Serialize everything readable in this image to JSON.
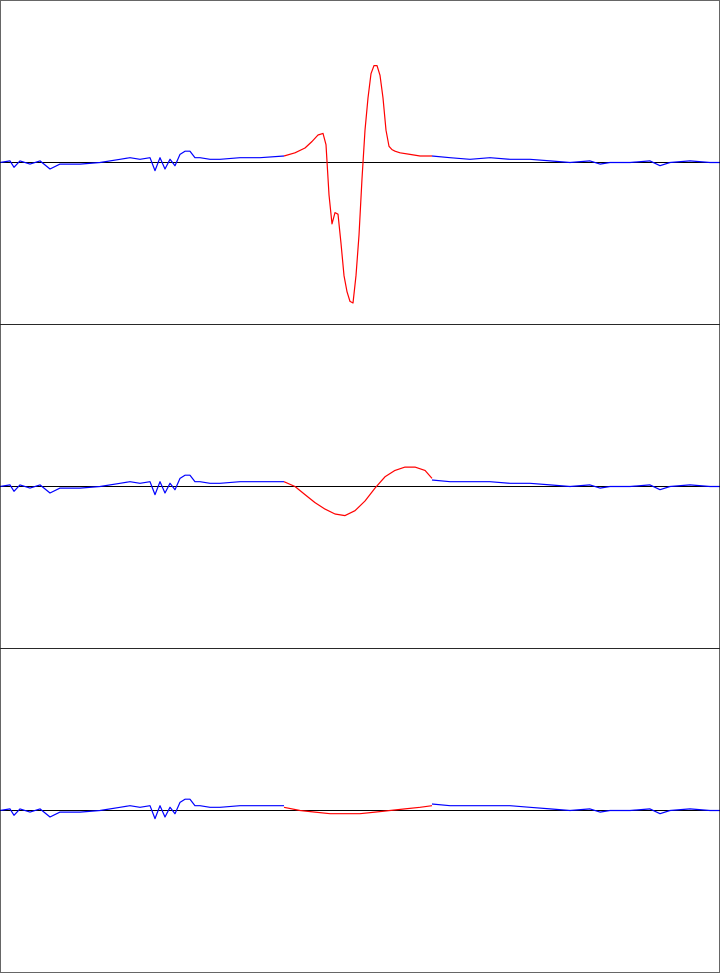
{
  "colors": {
    "background": "#ffffff",
    "frame": "#000000",
    "baseline": "#000000",
    "signal": "#0000ff",
    "highlight": "#ff0000"
  },
  "chart_data": [
    {
      "type": "line",
      "panel": "top",
      "ylim": [
        -1,
        1
      ],
      "baseline": 0,
      "series": [
        {
          "color": "#0000ff",
          "x": [
            0,
            10,
            14,
            20,
            30,
            40,
            50,
            60,
            80,
            100,
            120,
            130,
            140,
            150,
            155,
            160,
            165,
            170,
            175,
            180,
            185,
            190,
            195,
            200,
            210,
            220,
            240,
            260,
            284
          ],
          "values": [
            0.0,
            0.01,
            -0.03,
            0.01,
            -0.01,
            0.01,
            -0.04,
            -0.01,
            -0.01,
            0.0,
            0.02,
            0.03,
            0.02,
            0.03,
            -0.05,
            0.03,
            -0.04,
            0.02,
            -0.02,
            0.05,
            0.07,
            0.07,
            0.03,
            0.03,
            0.02,
            0.02,
            0.03,
            0.03,
            0.04
          ]
        },
        {
          "color": "#ff0000",
          "x": [
            284,
            295,
            305,
            312,
            318,
            323,
            326,
            329,
            332,
            335,
            338,
            341,
            344,
            347,
            350,
            353,
            356,
            359,
            362,
            365,
            368,
            371,
            374,
            377,
            380,
            383,
            386,
            389,
            392,
            395,
            400,
            410,
            420,
            432
          ],
          "values": [
            0.04,
            0.06,
            0.09,
            0.13,
            0.17,
            0.18,
            0.11,
            -0.2,
            -0.38,
            -0.31,
            -0.32,
            -0.5,
            -0.7,
            -0.8,
            -0.86,
            -0.87,
            -0.7,
            -0.45,
            -0.1,
            0.2,
            0.4,
            0.55,
            0.6,
            0.6,
            0.54,
            0.4,
            0.2,
            0.1,
            0.08,
            0.07,
            0.06,
            0.05,
            0.04,
            0.04
          ]
        },
        {
          "color": "#0000ff",
          "x": [
            432,
            450,
            470,
            490,
            510,
            530,
            550,
            570,
            590,
            600,
            610,
            630,
            650,
            660,
            670,
            690,
            710,
            720
          ],
          "values": [
            0.04,
            0.03,
            0.02,
            0.03,
            0.02,
            0.02,
            0.01,
            0.0,
            0.01,
            -0.01,
            0.0,
            0.0,
            0.01,
            -0.02,
            0.0,
            0.01,
            0.0,
            0.0
          ]
        }
      ]
    },
    {
      "type": "line",
      "panel": "middle",
      "ylim": [
        -1,
        1
      ],
      "baseline": 0,
      "series": [
        {
          "color": "#0000ff",
          "x": [
            0,
            10,
            14,
            20,
            30,
            40,
            50,
            60,
            80,
            100,
            120,
            130,
            140,
            150,
            155,
            160,
            165,
            170,
            175,
            180,
            185,
            190,
            195,
            200,
            210,
            220,
            240,
            260,
            284
          ],
          "values": [
            0.0,
            0.01,
            -0.03,
            0.01,
            -0.01,
            0.01,
            -0.04,
            -0.01,
            -0.01,
            0.0,
            0.02,
            0.03,
            0.02,
            0.03,
            -0.05,
            0.03,
            -0.04,
            0.02,
            -0.02,
            0.05,
            0.07,
            0.07,
            0.03,
            0.03,
            0.02,
            0.02,
            0.03,
            0.03,
            0.03
          ]
        },
        {
          "color": "#ff0000",
          "x": [
            284,
            295,
            305,
            315,
            325,
            335,
            345,
            355,
            365,
            375,
            385,
            395,
            405,
            415,
            425,
            432
          ],
          "values": [
            0.03,
            0.0,
            -0.05,
            -0.1,
            -0.14,
            -0.17,
            -0.18,
            -0.15,
            -0.09,
            -0.01,
            0.06,
            0.1,
            0.12,
            0.12,
            0.1,
            0.05
          ]
        },
        {
          "color": "#0000ff",
          "x": [
            432,
            450,
            470,
            490,
            510,
            530,
            550,
            570,
            590,
            600,
            610,
            630,
            650,
            660,
            670,
            690,
            710,
            720
          ],
          "values": [
            0.04,
            0.03,
            0.03,
            0.03,
            0.02,
            0.02,
            0.01,
            0.0,
            0.01,
            -0.01,
            0.0,
            0.0,
            0.01,
            -0.02,
            0.0,
            0.01,
            0.0,
            0.0
          ]
        }
      ]
    },
    {
      "type": "line",
      "panel": "bottom",
      "ylim": [
        -1,
        1
      ],
      "baseline": 0,
      "series": [
        {
          "color": "#0000ff",
          "x": [
            0,
            10,
            14,
            20,
            30,
            40,
            50,
            60,
            80,
            100,
            120,
            130,
            140,
            150,
            155,
            160,
            165,
            170,
            175,
            180,
            185,
            190,
            195,
            200,
            210,
            220,
            240,
            260,
            284
          ],
          "values": [
            0.0,
            0.01,
            -0.03,
            0.01,
            -0.01,
            0.01,
            -0.04,
            -0.01,
            -0.01,
            0.0,
            0.02,
            0.03,
            0.02,
            0.03,
            -0.05,
            0.03,
            -0.04,
            0.02,
            -0.02,
            0.05,
            0.07,
            0.07,
            0.03,
            0.03,
            0.02,
            0.02,
            0.03,
            0.03,
            0.03
          ]
        },
        {
          "color": "#ff0000",
          "x": [
            284,
            300,
            315,
            330,
            345,
            360,
            375,
            390,
            405,
            420,
            432
          ],
          "values": [
            0.02,
            0.0,
            -0.01,
            -0.02,
            -0.02,
            -0.02,
            -0.01,
            0.0,
            0.01,
            0.02,
            0.03
          ]
        },
        {
          "color": "#0000ff",
          "x": [
            432,
            450,
            470,
            490,
            510,
            530,
            550,
            570,
            590,
            600,
            610,
            630,
            650,
            660,
            670,
            690,
            710,
            720
          ],
          "values": [
            0.04,
            0.03,
            0.03,
            0.03,
            0.03,
            0.02,
            0.01,
            0.0,
            0.01,
            -0.01,
            0.0,
            0.0,
            0.01,
            -0.02,
            0.0,
            0.01,
            0.0,
            0.0
          ]
        }
      ]
    }
  ]
}
